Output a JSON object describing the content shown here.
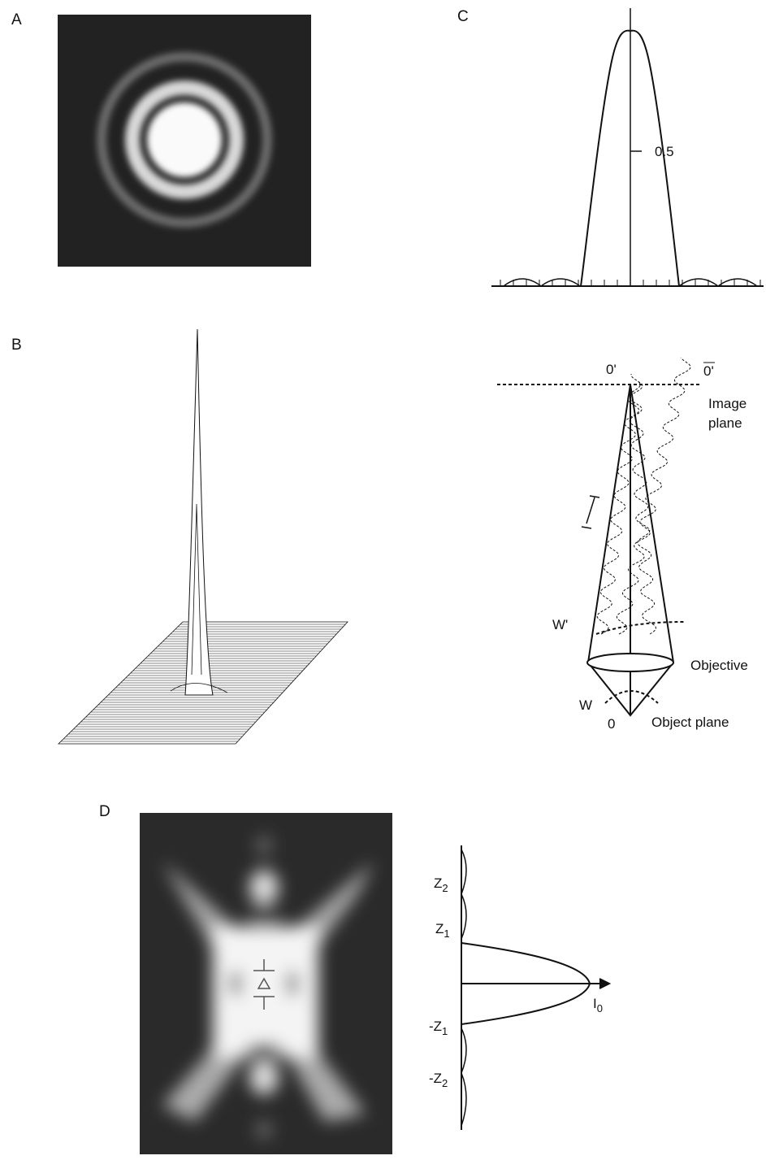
{
  "panels": {
    "labels": [
      "A",
      "B",
      "C",
      "D"
    ]
  },
  "panel_c": {
    "tick_label": "0.5"
  },
  "diagram": {
    "image_point": "0'",
    "image_point_shifted": "0'",
    "image_plane": [
      "Image",
      "plane"
    ],
    "wavefront_image": "W'",
    "objective": "Objective",
    "wavefront_object": "W",
    "object_point": "0",
    "object_plane": "Object plane"
  },
  "panel_d": {
    "labels": [
      {
        "base": "Z",
        "sub": "2"
      },
      {
        "base": "Z",
        "sub": "1"
      },
      {
        "base": "-Z",
        "sub": "1"
      },
      {
        "base": "-Z",
        "sub": "2"
      }
    ],
    "intensity": {
      "base": "I",
      "sub": "0"
    }
  }
}
